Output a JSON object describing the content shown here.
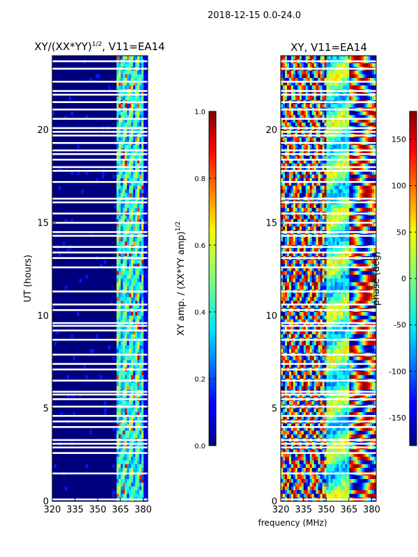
{
  "suptitle": "2018-12-15 0.0-24.0",
  "chart_data": [
    {
      "type": "heatmap",
      "title": "XY/(XX*YY)",
      "title_sup": "1/2",
      "title_suffix": ", V11=EA14",
      "xlabel": "",
      "ylabel": "UT (hours)",
      "xlim": [
        320,
        383
      ],
      "ylim": [
        0,
        24
      ],
      "xticks": [
        "320",
        "335",
        "350",
        "365",
        "380"
      ],
      "yticks": [
        "0",
        "5",
        "10",
        "15",
        "20"
      ],
      "colorbar": {
        "label": "XY amp. / (XX*YY amp)",
        "label_sup": "1/2",
        "range": [
          0.0,
          1.0
        ],
        "ticks": [
          "0.0",
          "0.2",
          "0.4",
          "0.6",
          "0.8",
          "1.0"
        ],
        "colormap": "jet"
      },
      "description_bands": [
        {
          "x_from": 320,
          "x_to": 362,
          "level": 0.04
        },
        {
          "x_from": 362,
          "x_to": 380,
          "level": 0.4
        }
      ]
    },
    {
      "type": "heatmap",
      "title": "XY, V11=EA14",
      "xlabel": "frequency (MHz)",
      "ylabel": "",
      "xlim": [
        320,
        383
      ],
      "ylim": [
        0,
        24
      ],
      "xticks": [
        "320",
        "335",
        "350",
        "365",
        "380"
      ],
      "yticks": [
        "0",
        "5",
        "10",
        "15",
        "20"
      ],
      "colorbar": {
        "label": "phase (deg)",
        "range": [
          -180,
          180
        ],
        "ticks": [
          "-150",
          "-100",
          "-50",
          "0",
          "50",
          "100",
          "150"
        ],
        "colormap": "jet"
      }
    }
  ],
  "flag_rows_hours": [
    0.1,
    1.5,
    2.6,
    2.9,
    3.1,
    3.3,
    4.0,
    4.3,
    4.6,
    5.1,
    5.5,
    5.75,
    5.9,
    6.5,
    7.1,
    7.4,
    7.9,
    8.7,
    9.2,
    9.45,
    9.6,
    10.3,
    10.6,
    11.3,
    12.6,
    13.1,
    13.4,
    13.7,
    14.3,
    14.5,
    15.0,
    15.5,
    16.1,
    16.3,
    17.2,
    17.8,
    18.0,
    18.4,
    18.7,
    18.9,
    19.3,
    19.7,
    19.9,
    20.1,
    20.6,
    21.1,
    21.5,
    21.9,
    22.1,
    22.6,
    23.3,
    23.7
  ]
}
